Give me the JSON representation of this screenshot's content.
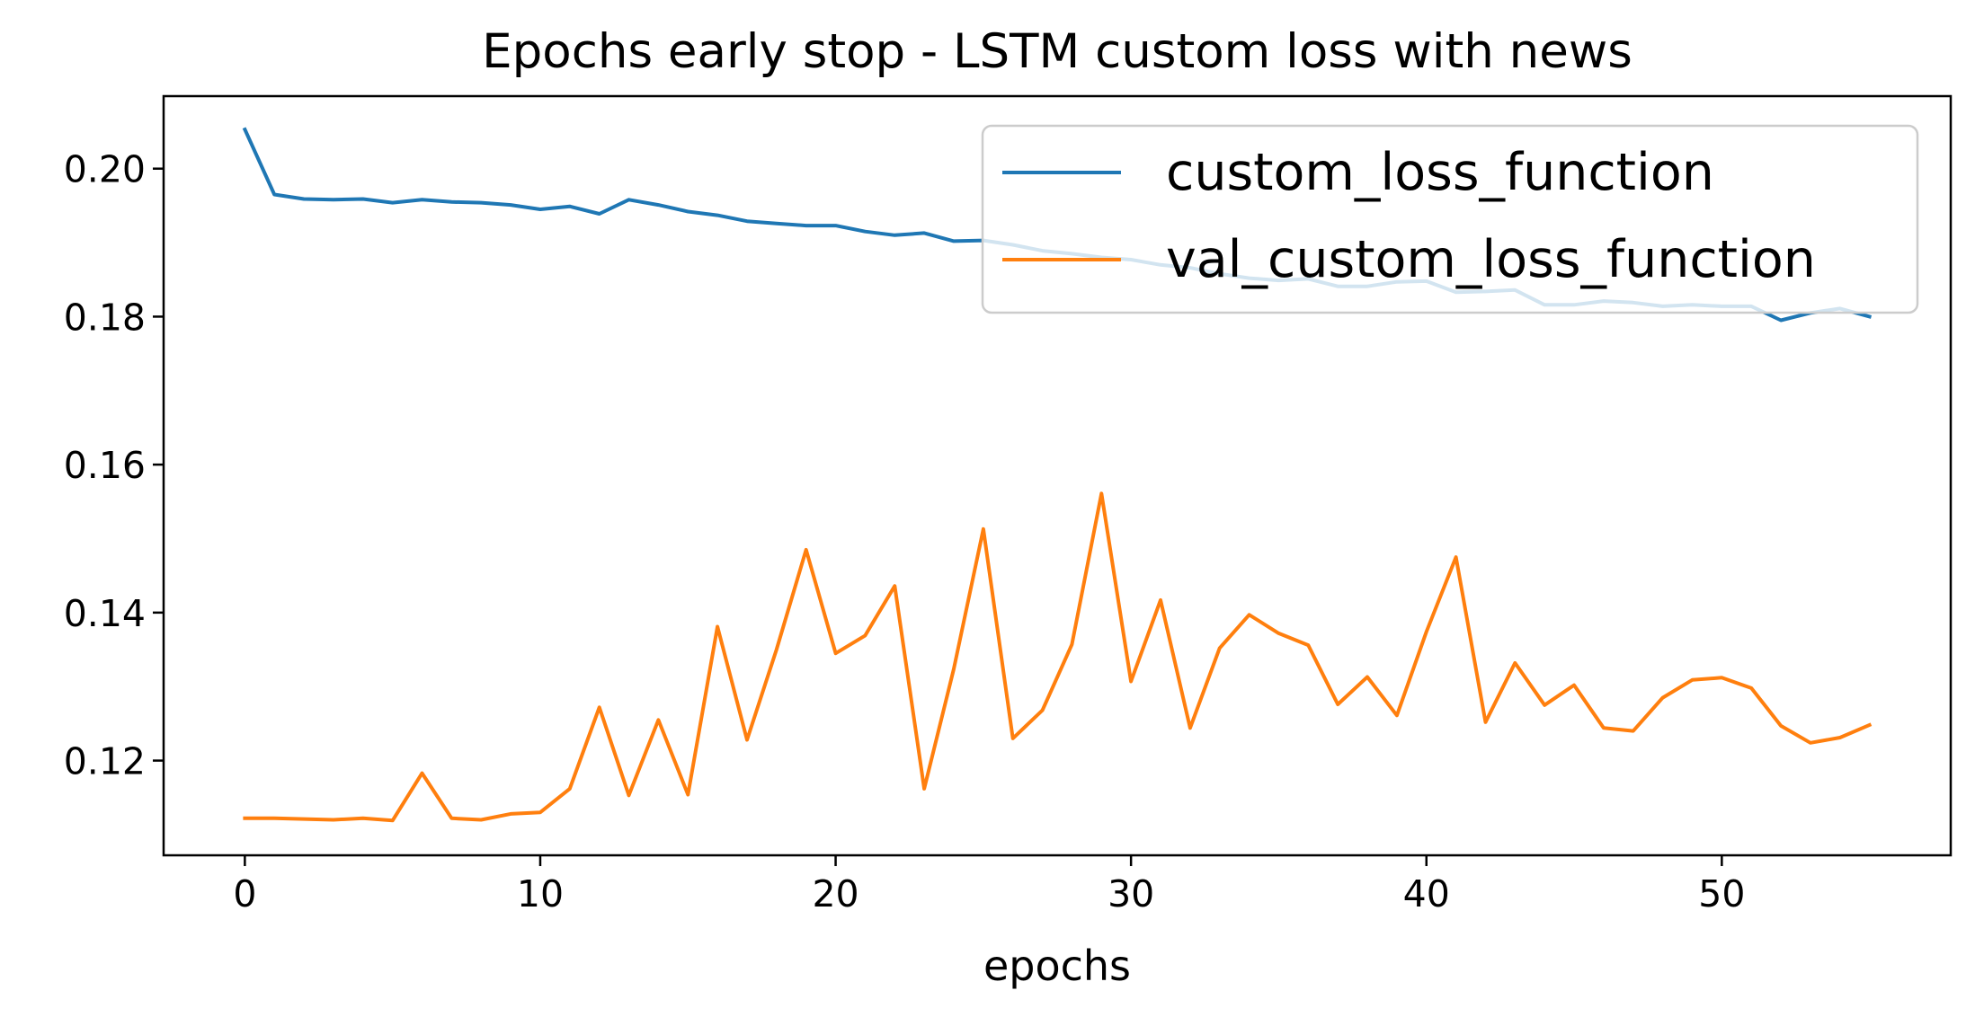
{
  "chart_data": {
    "type": "line",
    "title": "Epochs early stop - LSTM custom loss with news",
    "xlabel": "epochs",
    "ylabel": "",
    "xlim": [
      -2.75,
      57.75
    ],
    "ylim": [
      0.1072,
      0.2098
    ],
    "xticks": [
      0,
      10,
      20,
      30,
      40,
      50
    ],
    "xtick_labels": [
      "0",
      "10",
      "20",
      "30",
      "40",
      "50"
    ],
    "yticks": [
      0.12,
      0.14,
      0.16,
      0.18,
      0.2
    ],
    "ytick_labels": [
      "0.12",
      "0.14",
      "0.16",
      "0.18",
      "0.20"
    ],
    "grid": false,
    "legend_position": "top-right",
    "x": [
      0,
      1,
      2,
      3,
      4,
      5,
      6,
      7,
      8,
      9,
      10,
      11,
      12,
      13,
      14,
      15,
      16,
      17,
      18,
      19,
      20,
      21,
      22,
      23,
      24,
      25,
      26,
      27,
      28,
      29,
      30,
      31,
      32,
      33,
      34,
      35,
      36,
      37,
      38,
      39,
      40,
      41,
      42,
      43,
      44,
      45,
      46,
      47,
      48,
      49,
      50,
      51,
      52,
      53,
      54,
      55
    ],
    "series": [
      {
        "name": "custom_loss_function",
        "color": "#1f77b4",
        "values": [
          0.2053,
          0.1965,
          0.1959,
          0.1958,
          0.1959,
          0.1954,
          0.1958,
          0.1955,
          0.1954,
          0.1951,
          0.1945,
          0.1949,
          0.1939,
          0.1958,
          0.1951,
          0.1942,
          0.1937,
          0.1929,
          0.1926,
          0.1923,
          0.1923,
          0.1915,
          0.191,
          0.1913,
          0.1902,
          0.1903,
          0.1897,
          0.1889,
          0.1885,
          0.188,
          0.1877,
          0.187,
          0.1866,
          0.1858,
          0.1852,
          0.1849,
          0.1851,
          0.1841,
          0.1841,
          0.1847,
          0.1848,
          0.1833,
          0.1834,
          0.1836,
          0.1816,
          0.1816,
          0.1821,
          0.1819,
          0.1814,
          0.1816,
          0.1814,
          0.1814,
          0.1795,
          0.1805,
          0.1811,
          0.18
        ]
      },
      {
        "name": "val_custom_loss_function",
        "color": "#ff7f0e",
        "values": [
          0.1122,
          0.1122,
          0.1121,
          0.112,
          0.1122,
          0.1119,
          0.1183,
          0.1122,
          0.112,
          0.1128,
          0.113,
          0.1162,
          0.1272,
          0.1153,
          0.1255,
          0.1154,
          0.1381,
          0.1228,
          0.135,
          0.1485,
          0.1345,
          0.1369,
          0.1436,
          0.1162,
          0.1324,
          0.1513,
          0.123,
          0.1268,
          0.1357,
          0.1561,
          0.1307,
          0.1417,
          0.1244,
          0.1352,
          0.1397,
          0.1372,
          0.1356,
          0.1276,
          0.1313,
          0.1261,
          0.1374,
          0.1475,
          0.1252,
          0.1332,
          0.1275,
          0.1302,
          0.1244,
          0.124,
          0.1285,
          0.1309,
          0.1312,
          0.1298,
          0.1247,
          0.1224,
          0.1231,
          0.1248
        ]
      }
    ]
  }
}
